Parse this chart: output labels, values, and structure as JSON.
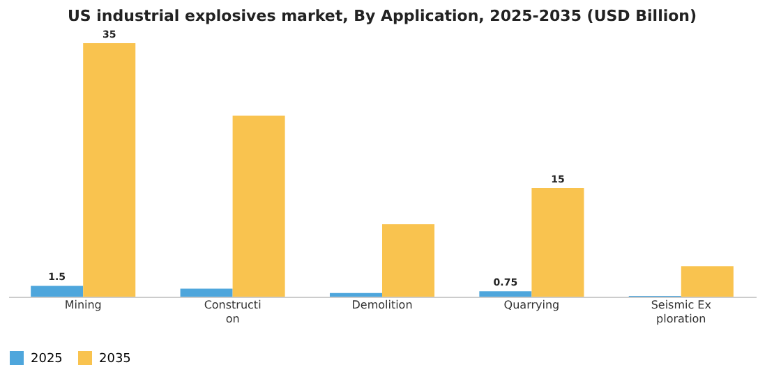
{
  "chart_data": {
    "type": "bar",
    "title": "US industrial explosives market, By Application, 2025-2035 (USD Billion)",
    "categories": [
      "Mining",
      "Construction",
      "Demolition",
      "Quarrying",
      "Seismic Exploration"
    ],
    "series": [
      {
        "name": "2025",
        "color": "#4ea6dc",
        "values": [
          1.5,
          1.1,
          0.5,
          0.75,
          0.1
        ],
        "value_labels": [
          "1.5",
          null,
          null,
          "0.75",
          null
        ]
      },
      {
        "name": "2035",
        "color": "#f9c34f",
        "values": [
          35,
          25,
          10,
          15,
          4.2
        ],
        "value_labels": [
          "35",
          null,
          null,
          "15",
          null
        ]
      }
    ],
    "legend": "bottom",
    "grid": false,
    "tick_labels": "x"
  }
}
